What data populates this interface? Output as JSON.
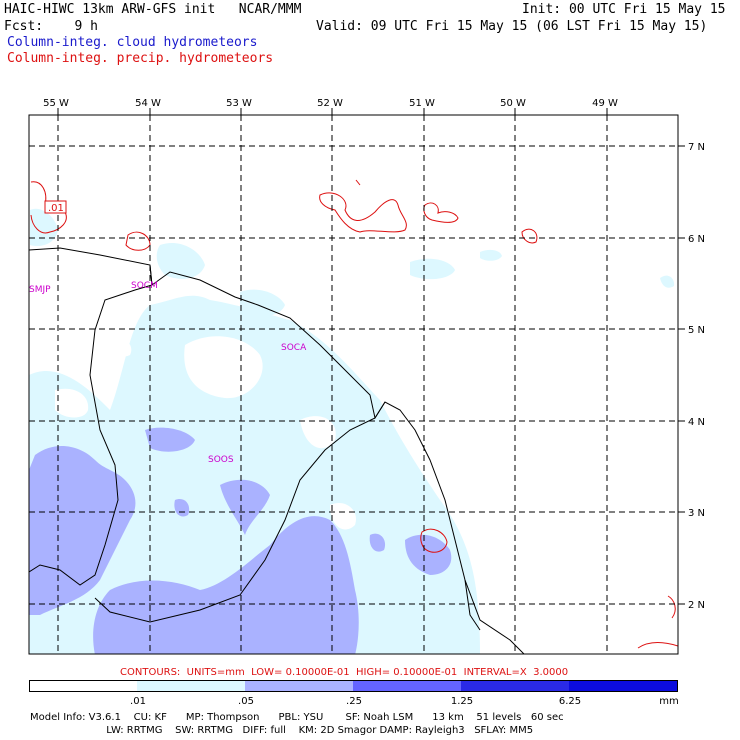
{
  "header": {
    "model_title": "HAIC-HIWC 13km ARW-GFS init   NCAR/MMM",
    "init": "Init: 00 UTC Fri 15 May 15",
    "fcst": "Fcst:    9 h",
    "valid": "Valid: 09 UTC Fri 15 May 15 (06 LST Fri 15 May 15)",
    "field1": "Column-integ. cloud hydrometeors",
    "field2": "Column-integ. precip. hydrometeors"
  },
  "map": {
    "lon_labels": [
      "55 W",
      "54 W",
      "53 W",
      "52 W",
      "51 W",
      "50 W",
      "49 W"
    ],
    "lat_labels": [
      "7 N",
      "6 N",
      "5 N",
      "4 N",
      "3 N",
      "2 N"
    ],
    "stations": [
      "SMJP",
      "SOCM",
      "SOCA",
      "SOOS"
    ],
    "contour_value_label": ".01"
  },
  "legend": {
    "contours_text": "CONTOURS:  UNITS=mm  LOW= 0.10000E-01  HIGH= 0.10000E-01  INTERVAL=X  3.0000",
    "colorbar_ticks": [
      ".01",
      ".05",
      ".25",
      "1.25",
      "6.25",
      "mm"
    ],
    "colorbar_colors": [
      "#ffffff",
      "#ddf8ff",
      "#aab2ff",
      "#6464ff",
      "#2a2ae6",
      "#0c0cde"
    ]
  },
  "model_info": {
    "line1": "Model Info: V3.6.1    CU: KF      MP: Thompson      PBL: YSU       SF: Noah LSM      13 km    51 levels   60 sec",
    "line2": "                        LW: RRTMG    SW: RRTMG   DIFF: full    KM: 2D Smagor DAMP: Rayleigh3   SFLAY: MM5"
  }
}
